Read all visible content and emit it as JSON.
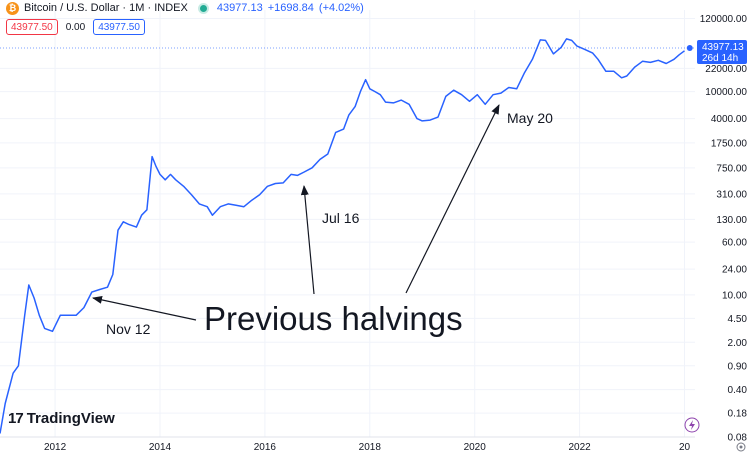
{
  "header": {
    "symbol": "Bitcoin / U.S. Dollar · 1M · INDEX",
    "last": "43977.13",
    "change": "+1698.84",
    "change_pct": "(+4.02%)"
  },
  "quote_row": {
    "sell": "43977.50",
    "spread": "0.00",
    "buy": "43977.50"
  },
  "logo": "TradingView",
  "price_label": {
    "value": "43977.13",
    "countdown": "26d 14h"
  },
  "colors": {
    "line": "#2962ff",
    "accent": "#2962ff",
    "sell": "#f23645",
    "logo_badge": "#8e44ad"
  },
  "chart_data": {
    "type": "line",
    "scale": "log",
    "x_ticks": [
      "2012",
      "2014",
      "2016",
      "2018",
      "2020",
      "2022",
      "20"
    ],
    "y_ticks": [
      "120000.00",
      "22000.00",
      "10000.00",
      "4000.00",
      "1750.00",
      "750.00",
      "310.00",
      "130.00",
      "60.00",
      "24.00",
      "10.00",
      "4.50",
      "2.00",
      "0.90",
      "0.40",
      "0.18",
      "0.08"
    ],
    "ylim": [
      0.08,
      160000
    ],
    "xlim": [
      2010.95,
      2024.2
    ],
    "series": [
      {
        "x": [
          2010.95,
          2011.05,
          2011.2,
          2011.3,
          2011.42,
          2011.5,
          2011.6,
          2011.7,
          2011.8,
          2011.95,
          2012.1,
          2012.25,
          2012.4,
          2012.55,
          2012.7,
          2012.85,
          2013.0,
          2013.1,
          2013.2,
          2013.3,
          2013.4,
          2013.55,
          2013.65,
          2013.75,
          2013.85,
          2013.92,
          2014.0,
          2014.1,
          2014.2,
          2014.3,
          2014.45,
          2014.6,
          2014.75,
          2014.9,
          2015.0,
          2015.15,
          2015.3,
          2015.45,
          2015.6,
          2015.75,
          2015.9,
          2016.05,
          2016.2,
          2016.35,
          2016.5,
          2016.62,
          2016.75,
          2016.9,
          2017.05,
          2017.2,
          2017.35,
          2017.5,
          2017.6,
          2017.72,
          2017.82,
          2017.92,
          2018.0,
          2018.1,
          2018.2,
          2018.3,
          2018.45,
          2018.6,
          2018.75,
          2018.9,
          2019.0,
          2019.15,
          2019.3,
          2019.45,
          2019.6,
          2019.75,
          2019.9,
          2020.05,
          2020.2,
          2020.35,
          2020.5,
          2020.65,
          2020.8,
          2020.95,
          2021.1,
          2021.25,
          2021.35,
          2021.5,
          2021.65,
          2021.75,
          2021.85,
          2021.95,
          2022.1,
          2022.25,
          2022.35,
          2022.5,
          2022.65,
          2022.8,
          2022.9,
          2023.05,
          2023.2,
          2023.35,
          2023.5,
          2023.65,
          2023.8,
          2023.9,
          2024.0
        ],
        "y": [
          0.09,
          0.25,
          0.7,
          0.9,
          5,
          14,
          9,
          5,
          3.2,
          2.9,
          5,
          5,
          5,
          6.5,
          11,
          12,
          13,
          20,
          90,
          120,
          110,
          100,
          150,
          180,
          1100,
          800,
          600,
          500,
          600,
          500,
          400,
          300,
          220,
          200,
          150,
          200,
          220,
          210,
          200,
          250,
          300,
          400,
          440,
          450,
          600,
          580,
          650,
          750,
          1000,
          1200,
          2500,
          2800,
          4500,
          6000,
          10000,
          15000,
          11000,
          10000,
          9000,
          7000,
          6800,
          7500,
          6500,
          4000,
          3700,
          3800,
          4200,
          8500,
          10500,
          9000,
          7200,
          9000,
          6500,
          9000,
          9500,
          11500,
          11000,
          19000,
          30000,
          58000,
          57000,
          36000,
          45000,
          60000,
          57000,
          47000,
          42000,
          37000,
          30000,
          20000,
          20000,
          16000,
          17000,
          23000,
          28000,
          27000,
          29000,
          26000,
          30000,
          35000,
          40000
        ]
      }
    ],
    "last_point": {
      "x": 2024.1,
      "y": 43977.13
    }
  },
  "annotations": {
    "main": "Previous halvings",
    "nov12": "Nov 12",
    "jul16": "Jul 16",
    "may20": "May 20"
  }
}
